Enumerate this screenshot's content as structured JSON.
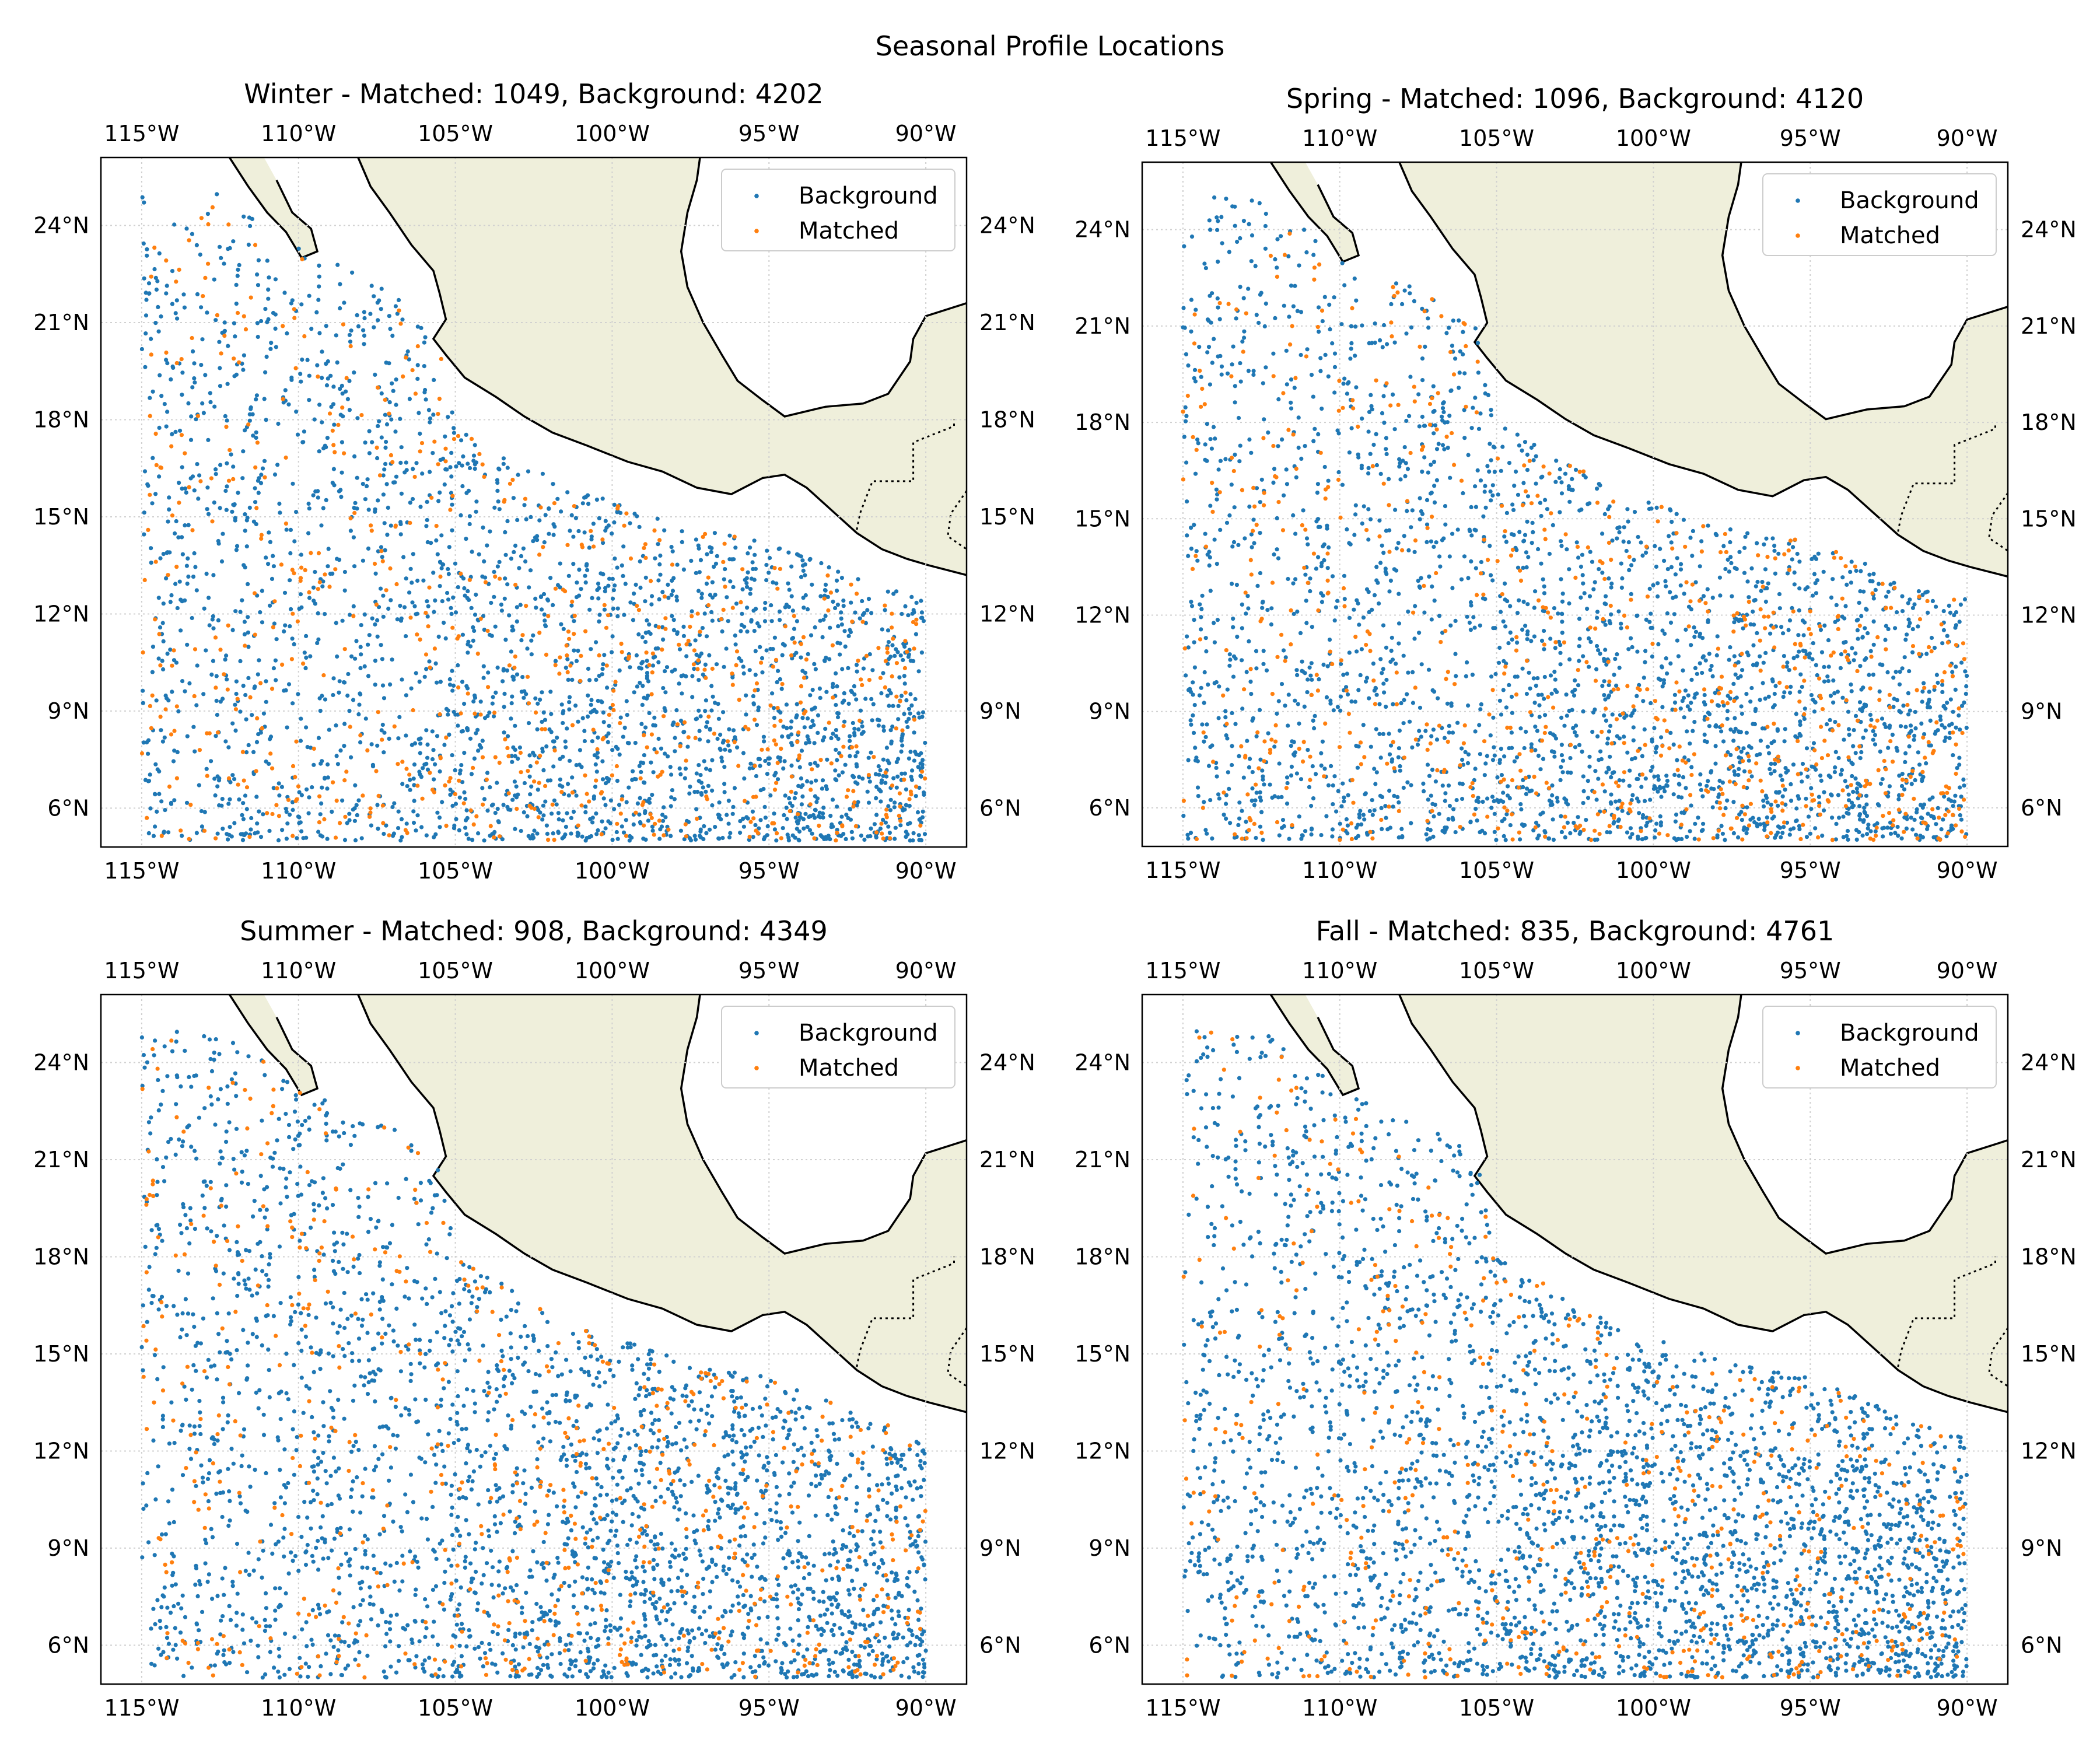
{
  "figure": {
    "title": "Seasonal Profile Locations"
  },
  "chart_data": [
    {
      "type": "scatter",
      "season": "Winter",
      "title": "Winter - Matched: 1049, Background: 4202",
      "xlim": [
        -116.3,
        -88.7
      ],
      "ylim": [
        4.8,
        26.1
      ],
      "x_ticks": [
        -115,
        -110,
        -105,
        -100,
        -95,
        -90
      ],
      "x_tick_labels": [
        "115°W",
        "110°W",
        "105°W",
        "100°W",
        "95°W",
        "90°W"
      ],
      "y_ticks": [
        6,
        9,
        12,
        15,
        18,
        21,
        24
      ],
      "y_tick_labels": [
        "6°N",
        "9°N",
        "12°N",
        "15°N",
        "18°N",
        "21°N",
        "24°N"
      ],
      "grid": true,
      "legend": "upper right",
      "series": [
        {
          "name": "Background",
          "color": "#1f77b4",
          "count": 4202
        },
        {
          "name": "Matched",
          "color": "#ff7f0e",
          "count": 1049
        }
      ],
      "extent": {
        "lon": [
          -115,
          -90
        ],
        "lat": [
          5,
          25
        ]
      }
    },
    {
      "type": "scatter",
      "season": "Spring",
      "title": "Spring - Matched: 1096, Background: 4120",
      "xlim": [
        -116.3,
        -88.7
      ],
      "ylim": [
        4.8,
        26.1
      ],
      "x_ticks": [
        -115,
        -110,
        -105,
        -100,
        -95,
        -90
      ],
      "x_tick_labels": [
        "115°W",
        "110°W",
        "105°W",
        "100°W",
        "95°W",
        "90°W"
      ],
      "y_ticks": [
        6,
        9,
        12,
        15,
        18,
        21,
        24
      ],
      "y_tick_labels": [
        "6°N",
        "9°N",
        "12°N",
        "15°N",
        "18°N",
        "21°N",
        "24°N"
      ],
      "grid": true,
      "legend": "upper right",
      "series": [
        {
          "name": "Background",
          "color": "#1f77b4",
          "count": 4120
        },
        {
          "name": "Matched",
          "color": "#ff7f0e",
          "count": 1096
        }
      ],
      "extent": {
        "lon": [
          -115,
          -90
        ],
        "lat": [
          5,
          25
        ]
      }
    },
    {
      "type": "scatter",
      "season": "Summer",
      "title": "Summer - Matched: 908, Background: 4349",
      "xlim": [
        -116.3,
        -88.7
      ],
      "ylim": [
        4.8,
        26.1
      ],
      "x_ticks": [
        -115,
        -110,
        -105,
        -100,
        -95,
        -90
      ],
      "x_tick_labels": [
        "115°W",
        "110°W",
        "105°W",
        "100°W",
        "95°W",
        "90°W"
      ],
      "y_ticks": [
        6,
        9,
        12,
        15,
        18,
        21,
        24
      ],
      "y_tick_labels": [
        "6°N",
        "9°N",
        "12°N",
        "15°N",
        "18°N",
        "21°N",
        "24°N"
      ],
      "grid": true,
      "legend": "upper right",
      "series": [
        {
          "name": "Background",
          "color": "#1f77b4",
          "count": 4349
        },
        {
          "name": "Matched",
          "color": "#ff7f0e",
          "count": 908
        }
      ],
      "extent": {
        "lon": [
          -115,
          -90
        ],
        "lat": [
          5,
          25
        ]
      }
    },
    {
      "type": "scatter",
      "season": "Fall",
      "title": "Fall - Matched: 835, Background: 4761",
      "xlim": [
        -116.3,
        -88.7
      ],
      "ylim": [
        4.8,
        26.1
      ],
      "x_ticks": [
        -115,
        -110,
        -105,
        -100,
        -95,
        -90
      ],
      "x_tick_labels": [
        "115°W",
        "110°W",
        "105°W",
        "100°W",
        "95°W",
        "90°W"
      ],
      "y_ticks": [
        6,
        9,
        12,
        15,
        18,
        21,
        24
      ],
      "y_tick_labels": [
        "6°N",
        "9°N",
        "12°N",
        "15°N",
        "18°N",
        "21°N",
        "24°N"
      ],
      "grid": true,
      "legend": "upper right",
      "series": [
        {
          "name": "Background",
          "color": "#1f77b4",
          "count": 4761
        },
        {
          "name": "Matched",
          "color": "#ff7f0e",
          "count": 835
        }
      ],
      "extent": {
        "lon": [
          -115,
          -90
        ],
        "lat": [
          5,
          25
        ]
      }
    }
  ],
  "map": {
    "land_color": "#efefdb",
    "coast_color": "#000000",
    "grid_color": "#d0d0d0",
    "mainland_coast": [
      [
        -108.1,
        26.1
      ],
      [
        -107.7,
        25.2
      ],
      [
        -107.1,
        24.4
      ],
      [
        -106.4,
        23.4
      ],
      [
        -105.7,
        22.6
      ],
      [
        -105.5,
        21.9
      ],
      [
        -105.3,
        21.1
      ],
      [
        -105.7,
        20.5
      ],
      [
        -105.3,
        20.0
      ],
      [
        -104.7,
        19.3
      ],
      [
        -103.7,
        18.7
      ],
      [
        -102.8,
        18.1
      ],
      [
        -101.9,
        17.6
      ],
      [
        -100.8,
        17.2
      ],
      [
        -99.5,
        16.7
      ],
      [
        -98.4,
        16.4
      ],
      [
        -97.3,
        15.9
      ],
      [
        -96.2,
        15.7
      ],
      [
        -95.2,
        16.2
      ],
      [
        -94.5,
        16.3
      ],
      [
        -93.8,
        15.9
      ],
      [
        -93.0,
        15.2
      ],
      [
        -92.2,
        14.5
      ],
      [
        -91.4,
        14.0
      ],
      [
        -90.6,
        13.7
      ],
      [
        -89.9,
        13.5
      ],
      [
        -88.7,
        13.2
      ]
    ],
    "gulf_coast": [
      [
        -88.7,
        21.6
      ],
      [
        -90.0,
        21.2
      ],
      [
        -90.4,
        20.5
      ],
      [
        -90.5,
        19.8
      ],
      [
        -91.2,
        18.8
      ],
      [
        -92.0,
        18.5
      ],
      [
        -93.2,
        18.4
      ],
      [
        -94.5,
        18.1
      ],
      [
        -95.2,
        18.6
      ],
      [
        -96.0,
        19.2
      ],
      [
        -96.5,
        20.0
      ],
      [
        -97.1,
        21.0
      ],
      [
        -97.6,
        22.1
      ],
      [
        -97.8,
        23.2
      ],
      [
        -97.6,
        24.4
      ],
      [
        -97.3,
        25.4
      ],
      [
        -97.2,
        26.1
      ]
    ],
    "baja_coast": [
      [
        -112.2,
        26.1
      ],
      [
        -111.6,
        25.2
      ],
      [
        -111.0,
        24.4
      ],
      [
        -110.4,
        23.8
      ],
      [
        -109.9,
        23.0
      ],
      [
        -109.4,
        23.2
      ],
      [
        -109.6,
        23.9
      ],
      [
        -110.2,
        24.4
      ],
      [
        -110.7,
        25.4
      ],
      [
        -111.1,
        26.1
      ]
    ],
    "border_mx_gt": [
      [
        -92.2,
        14.6
      ],
      [
        -92.1,
        15.1
      ],
      [
        -91.7,
        16.1
      ],
      [
        -90.4,
        16.1
      ],
      [
        -90.4,
        17.3
      ],
      [
        -89.1,
        17.8
      ],
      [
        -89.1,
        18.0
      ]
    ],
    "border_gt_east": [
      [
        -88.7,
        15.8
      ],
      [
        -89.2,
        15.1
      ],
      [
        -89.3,
        14.4
      ],
      [
        -88.7,
        14.0
      ]
    ]
  }
}
